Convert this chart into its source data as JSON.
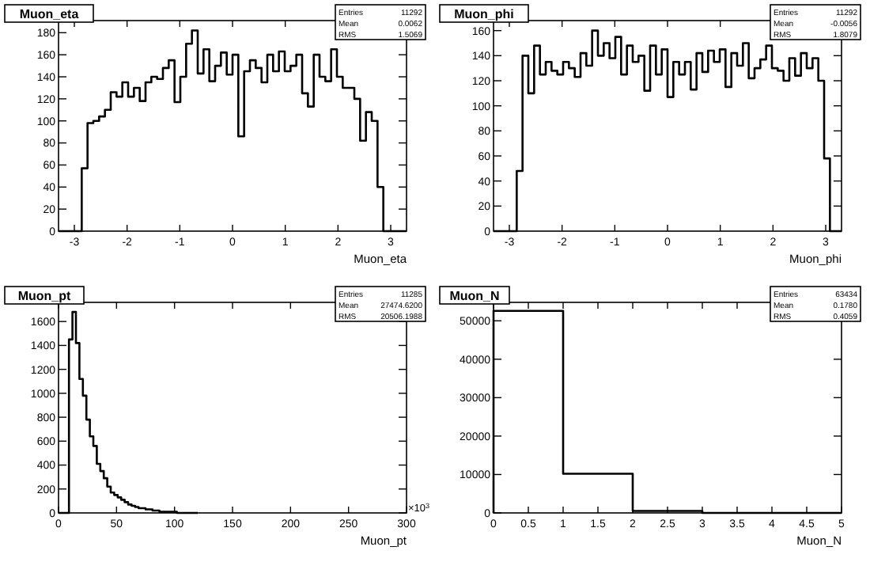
{
  "chart_data": [
    {
      "type": "histogram",
      "title": "Muon_eta",
      "xlabel": "Muon_eta",
      "color": "#000000",
      "xlim": [
        -3.3,
        3.3
      ],
      "xticks": [
        -3,
        -2,
        -1,
        0,
        1,
        2,
        3
      ],
      "ylim": [
        0,
        191
      ],
      "yticks": [
        0,
        20,
        40,
        60,
        80,
        100,
        120,
        140,
        160,
        180
      ],
      "annotations": [
        "Entries",
        "11292",
        "Mean",
        "0.0062",
        "RMS",
        "1.5069"
      ],
      "bins": [
        -3.3,
        -3.19,
        -3.08,
        -2.97,
        -2.86,
        -2.75,
        -2.64,
        -2.53,
        -2.42,
        -2.31,
        -2.2,
        -2.09,
        -1.98,
        -1.87,
        -1.76,
        -1.65,
        -1.54,
        -1.43,
        -1.32,
        -1.21,
        -1.1,
        -0.99,
        -0.88,
        -0.77,
        -0.66,
        -0.55,
        -0.44,
        -0.33,
        -0.22,
        -0.11,
        0,
        0.11,
        0.22,
        0.33,
        0.44,
        0.55,
        0.66,
        0.77,
        0.88,
        0.99,
        1.1,
        1.21,
        1.32,
        1.43,
        1.54,
        1.65,
        1.76,
        1.87,
        1.98,
        2.09,
        2.2,
        2.31,
        2.42,
        2.53,
        2.64,
        2.75,
        2.86,
        2.97,
        3.08,
        3.19,
        3.3
      ],
      "values": [
        0,
        0,
        0,
        0,
        57,
        98,
        100,
        104,
        110,
        126,
        122,
        135,
        122,
        130,
        118,
        135,
        140,
        138,
        148,
        155,
        117,
        140,
        170,
        182,
        143,
        165,
        136,
        150,
        162,
        142,
        160,
        86,
        145,
        155,
        148,
        135,
        160,
        145,
        163,
        145,
        150,
        160,
        125,
        113,
        160,
        140,
        136,
        165,
        140,
        130,
        130,
        120,
        82,
        108,
        100,
        40,
        0,
        0,
        0,
        0
      ]
    },
    {
      "type": "histogram",
      "title": "Muon_phi",
      "xlabel": "Muon_phi",
      "color": "#000000",
      "xlim": [
        -3.3,
        3.3
      ],
      "xticks": [
        -3,
        -2,
        -1,
        0,
        1,
        2,
        3
      ],
      "ylim": [
        0,
        168
      ],
      "yticks": [
        0,
        20,
        40,
        60,
        80,
        100,
        120,
        140,
        160
      ],
      "annotations": [
        "Entries",
        "11292",
        "Mean",
        "-0.0056",
        "RMS",
        "1.8079"
      ],
      "bins": [
        -3.3,
        -3.19,
        -3.08,
        -2.97,
        -2.86,
        -2.75,
        -2.64,
        -2.53,
        -2.42,
        -2.31,
        -2.2,
        -2.09,
        -1.98,
        -1.87,
        -1.76,
        -1.65,
        -1.54,
        -1.43,
        -1.32,
        -1.21,
        -1.1,
        -0.99,
        -0.88,
        -0.77,
        -0.66,
        -0.55,
        -0.44,
        -0.33,
        -0.22,
        -0.11,
        0,
        0.11,
        0.22,
        0.33,
        0.44,
        0.55,
        0.66,
        0.77,
        0.88,
        0.99,
        1.1,
        1.21,
        1.32,
        1.43,
        1.54,
        1.65,
        1.76,
        1.87,
        1.98,
        2.09,
        2.2,
        2.31,
        2.42,
        2.53,
        2.64,
        2.75,
        2.86,
        2.97,
        3.08,
        3.19,
        3.3
      ],
      "values": [
        0,
        0,
        0,
        0,
        48,
        140,
        110,
        148,
        125,
        135,
        128,
        125,
        135,
        130,
        123,
        142,
        132,
        160,
        140,
        150,
        138,
        155,
        125,
        148,
        135,
        140,
        112,
        148,
        125,
        145,
        107,
        135,
        125,
        135,
        113,
        142,
        127,
        144,
        135,
        145,
        115,
        142,
        132,
        150,
        122,
        130,
        137,
        148,
        130,
        128,
        120,
        138,
        124,
        142,
        130,
        138,
        120,
        58,
        0,
        0
      ]
    },
    {
      "type": "histogram",
      "title": "Muon_pt",
      "xlabel": "Muon_pt",
      "color": "#000000",
      "xlim": [
        0,
        300
      ],
      "xticks": [
        0,
        50,
        100,
        150,
        200,
        250,
        300
      ],
      "ylim": [
        0,
        1760
      ],
      "yticks": [
        0,
        200,
        400,
        600,
        800,
        1000,
        1200,
        1400,
        1600
      ],
      "annotations": [
        "Entries",
        "11285",
        "Mean",
        "27474.6200",
        "RMS",
        "20506.1988",
        "×10$^{3}$"
      ],
      "bins": [
        0,
        3,
        6,
        9,
        12,
        15,
        18,
        21,
        24,
        27,
        30,
        33,
        36,
        39,
        42,
        45,
        48,
        51,
        54,
        57,
        60,
        63,
        66,
        69,
        72,
        75,
        78,
        81,
        84,
        87,
        90,
        93,
        96,
        99,
        102,
        105,
        108,
        111,
        114,
        117,
        120
      ],
      "values": [
        0,
        0,
        0,
        1450,
        1680,
        1420,
        1120,
        980,
        780,
        640,
        560,
        410,
        350,
        290,
        220,
        170,
        150,
        130,
        110,
        90,
        70,
        60,
        50,
        40,
        40,
        30,
        30,
        20,
        20,
        10,
        10,
        10,
        10,
        10,
        0,
        0,
        0,
        0,
        0,
        0
      ]
    },
    {
      "type": "histogram",
      "title": "Muon_N",
      "xlabel": "Muon_N",
      "color": "#000000",
      "xlim": [
        0,
        5
      ],
      "xticks": [
        0,
        0.5,
        1,
        1.5,
        2,
        2.5,
        3,
        3.5,
        4,
        4.5,
        5
      ],
      "ylim": [
        0,
        54800
      ],
      "yticks": [
        0,
        10000,
        20000,
        30000,
        40000,
        50000
      ],
      "annotations": [
        "Entries",
        "63434",
        "Mean",
        "0.1780",
        "RMS",
        "0.4059"
      ],
      "bins": [
        0,
        1,
        2,
        3,
        4,
        5
      ],
      "values": [
        52600,
        10200,
        500,
        0,
        0
      ]
    }
  ]
}
